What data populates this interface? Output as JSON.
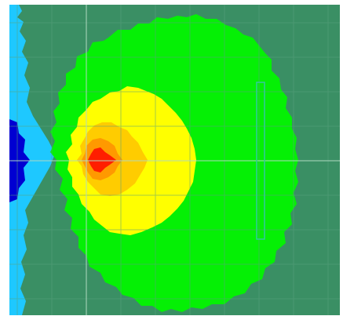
{
  "canvas": {
    "background": "#ffffff",
    "field_color": "#3a8f64",
    "grid_color": "#5aa27e",
    "crosshair_color": "#b0d8c0",
    "marker_color": "#33c7a0"
  },
  "zones": [
    {
      "name": "outer-green",
      "color": "#05f005"
    },
    {
      "name": "yellow",
      "color": "#ffff00"
    },
    {
      "name": "light-orange",
      "color": "#ffcc00"
    },
    {
      "name": "orange",
      "color": "#ff9900"
    },
    {
      "name": "red",
      "color": "#ff1e00"
    },
    {
      "name": "left-light-blue",
      "color": "#1ec8ff"
    },
    {
      "name": "left-dark-blue",
      "color": "#0000d2"
    }
  ]
}
